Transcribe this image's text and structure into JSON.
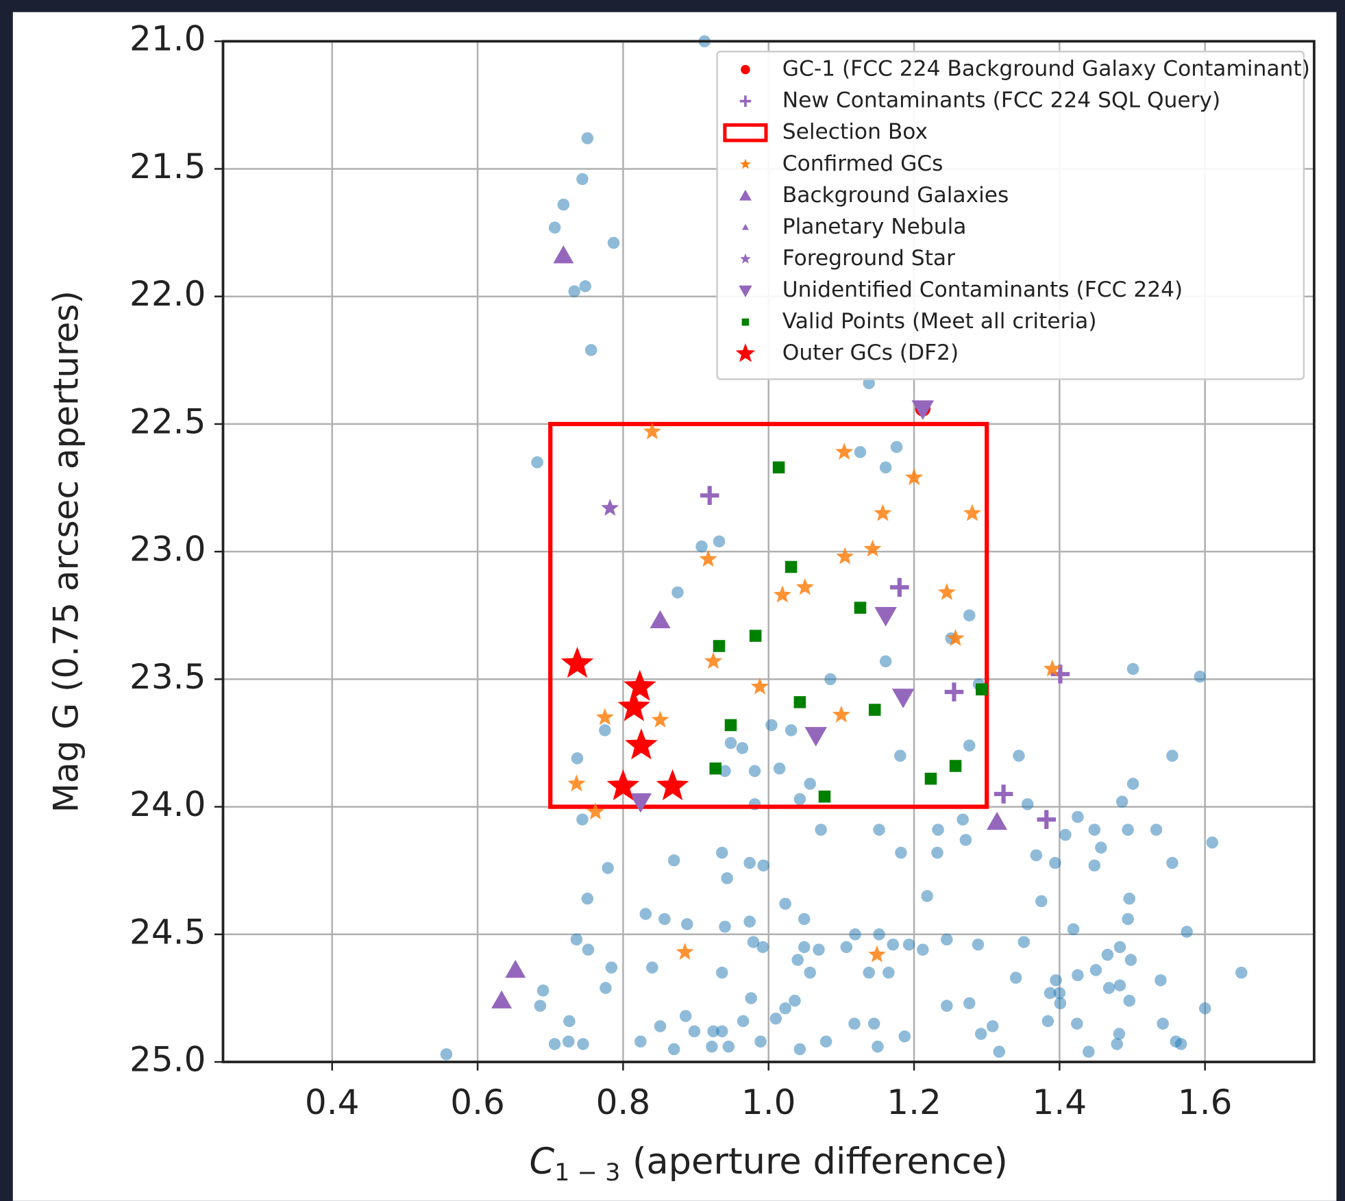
{
  "chart_data": {
    "type": "scatter",
    "xlabel": {
      "symbol": "C",
      "subscript": "1 − 3",
      "text": "(aperture difference)"
    },
    "ylabel": "Mag G (0.75 arcsec apertures)",
    "xlim": [
      0.25,
      1.75
    ],
    "ylim": [
      25.0,
      21.0
    ],
    "xticks": [
      0.4,
      0.6,
      0.8,
      {
        "value": 1.0,
        "label": "1.0"
      },
      1.2,
      1.4,
      1.6
    ],
    "yticks": [
      {
        "value": 21.0,
        "label": "21.0"
      },
      21.5,
      {
        "value": 22.0,
        "label": "22.0"
      },
      22.5,
      {
        "value": 23.0,
        "label": "23.0"
      },
      23.5,
      {
        "value": 24.0,
        "label": "24.0"
      },
      24.5,
      {
        "value": 25.0,
        "label": "25.0"
      }
    ],
    "grid": true,
    "legend": "upper right",
    "background": {
      "color": "#1f77b4",
      "marker": "circle",
      "size": 7,
      "alpha": 0.5,
      "x": [
        0.912,
        0.751,
        0.744,
        0.718,
        0.706,
        0.787,
        0.748,
        0.733,
        0.756,
        1.138,
        0.682,
        1.126,
        1.176,
        1.161,
        0.908,
        0.932,
        0.875,
        1.276,
        1.251,
        1.161,
        1.085,
        1.289,
        1.501,
        1.593,
        1.004,
        0.948,
        0.964,
        1.031,
        1.181,
        1.276,
        1.344,
        1.555,
        0.737,
        0.775,
        0.94,
        0.981,
        1.015,
        1.057,
        1.501,
        1.043,
        0.981,
        1.356,
        0.744,
        1.072,
        1.152,
        1.233,
        1.267,
        1.425,
        1.448,
        1.486,
        1.494,
        1.533,
        1.408,
        1.457,
        1.271,
        1.232,
        1.182,
        1.61,
        0.87,
        0.936,
        0.974,
        0.993,
        1.368,
        1.394,
        1.448,
        1.555,
        0.779,
        0.943,
        0.751,
        1.218,
        1.375,
        1.023,
        1.496,
        1.494,
        0.831,
        0.857,
        0.888,
        0.94,
        0.974,
        1.049,
        1.419,
        1.575,
        0.736,
        0.752,
        0.979,
        0.992,
        1.049,
        1.069,
        1.107,
        1.119,
        1.152,
        1.171,
        1.193,
        1.212,
        1.245,
        1.288,
        1.351,
        1.466,
        1.483,
        1.498,
        0.784,
        0.84,
        0.936,
        1.04,
        1.057,
        1.138,
        1.165,
        1.34,
        1.395,
        1.425,
        1.45,
        1.539,
        1.65,
        0.69,
        0.776,
        1.387,
        1.4,
        1.468,
        1.483,
        0.686,
        0.976,
        1.023,
        1.036,
        1.245,
        1.276,
        1.401,
        1.496,
        1.6,
        0.726,
        0.886,
        0.851,
        0.965,
        1.01,
        1.118,
        1.145,
        1.308,
        1.292,
        1.384,
        1.424,
        1.482,
        1.542,
        0.924,
        0.936,
        0.706,
        0.725,
        0.745,
        0.824,
        0.898,
        0.922,
        0.945,
        0.989,
        1.043,
        1.079,
        1.15,
        1.187,
        1.44,
        1.479,
        1.56,
        1.567,
        0.557,
        0.87,
        1.317
      ],
      "y": [
        21.0,
        21.38,
        21.54,
        21.64,
        21.73,
        21.79,
        21.96,
        21.98,
        22.21,
        22.34,
        22.65,
        22.61,
        22.59,
        22.67,
        22.98,
        22.96,
        23.16,
        23.25,
        23.34,
        23.43,
        23.5,
        23.52,
        23.46,
        23.49,
        23.68,
        23.75,
        23.77,
        23.7,
        23.8,
        23.76,
        23.8,
        23.8,
        23.81,
        23.7,
        23.86,
        23.86,
        23.85,
        23.91,
        23.91,
        23.97,
        23.99,
        23.99,
        24.05,
        24.09,
        24.09,
        24.09,
        24.05,
        24.04,
        24.09,
        23.98,
        24.09,
        24.09,
        24.11,
        24.16,
        24.13,
        24.18,
        24.18,
        24.14,
        24.21,
        24.18,
        24.22,
        24.23,
        24.19,
        24.22,
        24.23,
        24.22,
        24.24,
        24.28,
        24.36,
        24.35,
        24.37,
        24.38,
        24.36,
        24.44,
        24.42,
        24.44,
        24.46,
        24.47,
        24.45,
        24.44,
        24.48,
        24.49,
        24.52,
        24.56,
        24.53,
        24.55,
        24.55,
        24.56,
        24.55,
        24.5,
        24.5,
        24.54,
        24.54,
        24.56,
        24.52,
        24.54,
        24.53,
        24.58,
        24.55,
        24.6,
        24.63,
        24.63,
        24.65,
        24.6,
        24.65,
        24.65,
        24.65,
        24.67,
        24.68,
        24.66,
        24.64,
        24.68,
        24.65,
        24.72,
        24.71,
        24.73,
        24.73,
        24.71,
        24.7,
        24.78,
        24.75,
        24.79,
        24.76,
        24.78,
        24.77,
        24.77,
        24.76,
        24.79,
        24.84,
        24.82,
        24.86,
        24.84,
        24.83,
        24.85,
        24.85,
        24.86,
        24.89,
        24.84,
        24.85,
        24.89,
        24.85,
        24.88,
        24.88,
        24.93,
        24.92,
        24.93,
        24.92,
        24.88,
        24.94,
        24.94,
        24.92,
        24.95,
        24.92,
        24.94,
        24.9,
        24.96,
        24.93,
        24.92,
        24.93,
        24.97,
        24.95,
        24.96
      ]
    },
    "series": [
      {
        "name": "GC-1 (FCC 224 Background Galaxy Contaminant)",
        "color": "#ff0000",
        "marker": "circle",
        "size": 9,
        "alpha": 1,
        "x": [
          1.212
        ],
        "y": [
          22.44
        ]
      },
      {
        "name": "New Contaminants (FCC 224 SQL Query)",
        "color": "#9467bd",
        "marker": "plus",
        "size": 11,
        "alpha": 1,
        "x": [
          1.18,
          1.255,
          0.919,
          1.323,
          1.382,
          1.401
        ],
        "y": [
          23.14,
          23.55,
          22.78,
          23.95,
          24.05,
          23.48
        ]
      },
      {
        "name": "Selection Box",
        "color": "#ff0000",
        "marker": "box",
        "x": [
          0.7,
          1.3
        ],
        "y": [
          22.5,
          24.0
        ]
      },
      {
        "name": "Confirmed GCs",
        "color": "#ff7f0e",
        "marker": "star",
        "size": 11,
        "alpha": 0.85,
        "x": [
          0.84,
          1.104,
          1.2,
          1.157,
          1.28,
          1.143,
          1.105,
          0.917,
          1.05,
          1.019,
          1.245,
          1.257,
          0.924,
          0.988,
          1.39,
          0.775,
          0.851,
          1.1,
          0.736,
          0.762,
          0.885,
          1.149
        ],
        "y": [
          22.53,
          22.61,
          22.71,
          22.85,
          22.85,
          22.99,
          23.02,
          23.03,
          23.14,
          23.17,
          23.16,
          23.34,
          23.43,
          23.53,
          23.46,
          23.65,
          23.66,
          23.64,
          23.91,
          24.02,
          24.57,
          24.58
        ]
      },
      {
        "name": "Background Galaxies",
        "color": "#9467bd",
        "marker": "triangle",
        "size": 12,
        "alpha": 1,
        "x": [
          0.718,
          0.851,
          1.314,
          0.652,
          0.633
        ],
        "y": [
          21.84,
          23.27,
          24.06,
          24.64,
          24.76
        ]
      },
      {
        "name": "Planetary Nebula",
        "color": "#9467bd",
        "marker": "triangle",
        "size": 6,
        "alpha": 1,
        "x": [],
        "y": []
      },
      {
        "name": "Foreground Star",
        "color": "#9467bd",
        "marker": "star",
        "size": 11,
        "alpha": 1,
        "x": [
          0.782
        ],
        "y": [
          22.83
        ]
      },
      {
        "name": "Unidentified Contaminants (FCC 224)",
        "color": "#9467bd",
        "marker": "triangle-down",
        "size": 13,
        "alpha": 1,
        "x": [
          1.161,
          1.065,
          1.185,
          1.212,
          0.824
        ],
        "y": [
          23.25,
          23.72,
          23.57,
          22.44,
          23.98
        ]
      },
      {
        "name": "Valid Points (Meet all criteria)",
        "color": "#008000",
        "marker": "square",
        "size": 7,
        "alpha": 1,
        "x": [
          1.014,
          1.031,
          1.126,
          0.982,
          0.932,
          1.293,
          1.043,
          1.146,
          0.948,
          0.927,
          1.257,
          1.223,
          1.077
        ],
        "y": [
          22.67,
          23.06,
          23.22,
          23.33,
          23.37,
          23.54,
          23.59,
          23.62,
          23.68,
          23.85,
          23.84,
          23.89,
          23.96
        ]
      },
      {
        "name": "Outer GCs (DF2)",
        "color": "#ff0000",
        "marker": "star",
        "size": 20,
        "alpha": 1,
        "x": [
          0.737,
          0.823,
          0.815,
          0.825,
          0.8,
          0.868
        ],
        "y": [
          23.44,
          23.53,
          23.61,
          23.76,
          23.92,
          23.92
        ]
      }
    ]
  }
}
